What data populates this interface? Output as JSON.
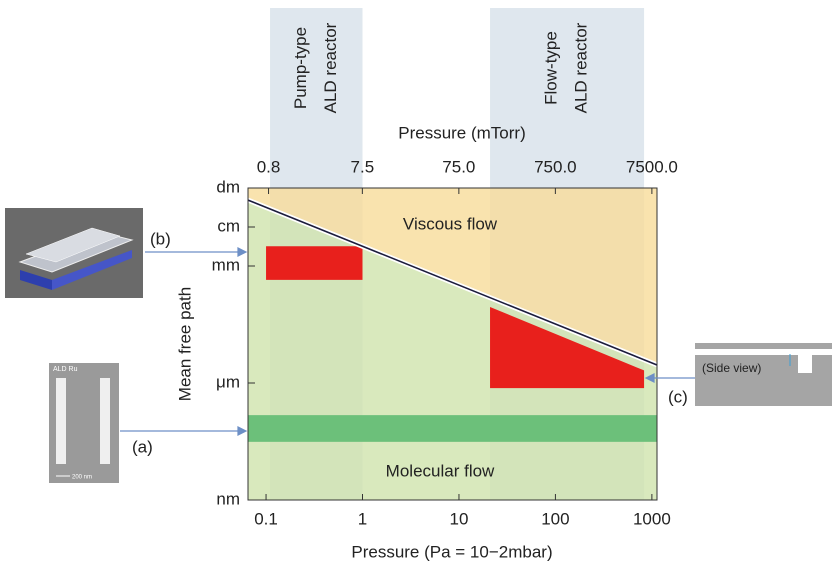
{
  "chart_data": {
    "type": "line",
    "xlabel": "Pressure (Pa = 10−2mbar)",
    "x2label": "Pressure (mTorr)",
    "ylabel": "Mean free path",
    "log_x": true,
    "log_y": true,
    "xlim": [
      0.065,
      1130
    ],
    "xticks": [
      {
        "value": 0.1,
        "label": "0.1"
      },
      1,
      10,
      100,
      1000
    ],
    "x2lim": [
      0.49,
      8475
    ],
    "x2ticks": [
      0.8,
      7.5,
      {
        "value": 75,
        "label": "75.0"
      },
      {
        "value": 750,
        "label": "750.0"
      },
      {
        "value": 7500,
        "label": "7500.0"
      }
    ],
    "ylim": [
      1e-09,
      0.1
    ],
    "yticks": [
      {
        "value": 0.1,
        "label": "dm"
      },
      {
        "value": 0.01,
        "label": "cm"
      },
      {
        "value": 0.001,
        "label": "mm"
      },
      {
        "value": 1e-06,
        "label": "μm"
      },
      {
        "value": 1e-09,
        "label": "nm"
      }
    ],
    "viscous_color": "#f7dc9a",
    "molecular_color": "#cfe4ad",
    "boundary": {
      "x": [
        0.065,
        1130
      ],
      "values": [
        0.049,
        2.9e-06
      ],
      "color": "#1c1c3c"
    },
    "reactors": [
      {
        "lines": [
          "Pump-type",
          "ALD reactor"
        ],
        "x": [
          0.11,
          1
        ]
      },
      {
        "lines": [
          "Flow-type",
          "ALD reactor"
        ],
        "x": [
          21,
          830
        ]
      }
    ],
    "reactor_color": "#dfe7ee",
    "highlights": [
      {
        "x": [
          0.1,
          0.1,
          1,
          1
        ],
        "y": [
          0.00044,
          0.0032,
          0.0032,
          0.00044
        ],
        "color": "#e8201c"
      },
      {
        "x": [
          21,
          21,
          830,
          830
        ],
        "y": [
          8.9e-05,
          7.4e-07,
          7.4e-07,
          2.1e-06
        ],
        "color": "#e8201c"
      }
    ],
    "band": {
      "y": [
        3.1e-08,
        1.5e-07
      ],
      "color": "#6cc07a"
    },
    "region_labels": [
      "Viscous flow",
      "Molecular flow"
    ],
    "insets": [
      "(a)",
      "(b)",
      "(c)",
      "(Side view)",
      "ALD Ru",
      "200 nm"
    ]
  }
}
